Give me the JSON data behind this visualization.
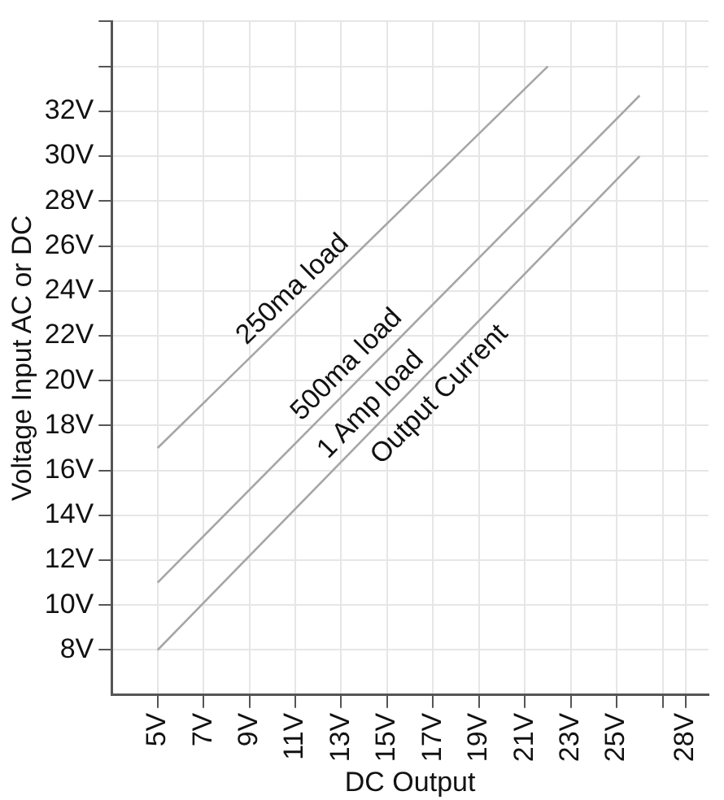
{
  "chart_data": {
    "type": "line",
    "xlabel": "DC Output",
    "ylabel": "Voltage Input AC or DC",
    "annotations": [
      "Output Current"
    ],
    "series": [
      {
        "name": "250ma load",
        "color": "#a6a6a6",
        "x": [
          5,
          22
        ],
        "values": [
          17,
          34
        ]
      },
      {
        "name": "500ma load",
        "color": "#a6a6a6",
        "x": [
          5,
          26
        ],
        "values": [
          11,
          32.7
        ]
      },
      {
        "name": "1 Amp load",
        "color": "#a6a6a6",
        "x": [
          5,
          26
        ],
        "values": [
          8,
          30
        ]
      }
    ],
    "xlim": [
      3,
      29
    ],
    "ylim": [
      6,
      36
    ],
    "xticks": [
      {
        "value": 5,
        "label": "5V"
      },
      {
        "value": 7,
        "label": "7V"
      },
      {
        "value": 9,
        "label": "9V"
      },
      {
        "value": 11,
        "label": "11V"
      },
      {
        "value": 13,
        "label": "13V"
      },
      {
        "value": 15,
        "label": "15V"
      },
      {
        "value": 17,
        "label": "17V"
      },
      {
        "value": 19,
        "label": "19V"
      },
      {
        "value": 21,
        "label": "21V"
      },
      {
        "value": 23,
        "label": "23V"
      },
      {
        "value": 25,
        "label": "25V"
      },
      {
        "value": 27,
        "label": null
      },
      {
        "value": 28,
        "label": "28V"
      }
    ],
    "yticks": [
      {
        "value": 8,
        "label": "8V"
      },
      {
        "value": 10,
        "label": "10V"
      },
      {
        "value": 12,
        "label": "12V"
      },
      {
        "value": 14,
        "label": "14V"
      },
      {
        "value": 16,
        "label": "16V"
      },
      {
        "value": 18,
        "label": "18V"
      },
      {
        "value": 20,
        "label": "20V"
      },
      {
        "value": 22,
        "label": "22V"
      },
      {
        "value": 24,
        "label": "24V"
      },
      {
        "value": 26,
        "label": "26V"
      },
      {
        "value": 28,
        "label": "28V"
      },
      {
        "value": 30,
        "label": "30V"
      },
      {
        "value": 32,
        "label": "32V"
      },
      {
        "value": 34,
        "label": null
      },
      {
        "value": 36,
        "label": null
      }
    ],
    "grid": true,
    "legend": false,
    "marker": "none",
    "line_style": "solid"
  }
}
